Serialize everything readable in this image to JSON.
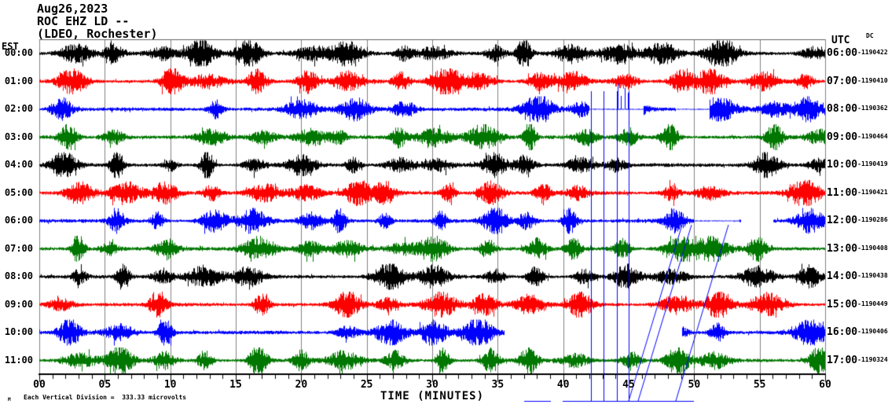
{
  "header": {
    "date": "Aug26,2023",
    "station_line": "ROC EHZ LD --",
    "network_line": "(LDEO, Rochester)"
  },
  "left_axis": {
    "label": "EST"
  },
  "right_axis": {
    "label": "UTC",
    "dc_label": "DC"
  },
  "x_axis": {
    "title": "TIME (MINUTES)",
    "tick_labels": [
      "00",
      "05",
      "10",
      "15",
      "20",
      "25",
      "30",
      "35",
      "40",
      "45",
      "50",
      "55",
      "60"
    ],
    "major_tick_minutes": 5,
    "minor_tick_minutes": 1
  },
  "footer": {
    "marker": "M",
    "text": "Each Vertical Division =",
    "value": "333.33 microvolts"
  },
  "colors": {
    "trace_black": "#000000",
    "trace_red": "#ff0000",
    "trace_blue": "#0000ff",
    "trace_green": "#007700",
    "grid": "#808080",
    "axis": "#000000",
    "background": "#ffffff"
  },
  "chart_data": {
    "type": "line",
    "subtype": "helicorder-seismogram",
    "title": "ROC EHZ LD -- (LDEO, Rochester) Aug26,2023",
    "xlabel": "TIME (MINUTES)",
    "x_range_minutes": [
      0,
      60
    ],
    "grid": "vertical gray lines every 5 minutes",
    "vertical_division_microvolts": 333.33,
    "row_count": 12,
    "rows": [
      {
        "est": "00:00",
        "utc": "06:00",
        "dc": "-1190422",
        "color": "#000000"
      },
      {
        "est": "01:00",
        "utc": "07:00",
        "dc": "-1190410",
        "color": "#ff0000"
      },
      {
        "est": "02:00",
        "utc": "08:00",
        "dc": "-1190362",
        "color": "#0000ff"
      },
      {
        "est": "03:00",
        "utc": "09:00",
        "dc": "-1190464",
        "color": "#007700"
      },
      {
        "est": "04:00",
        "utc": "10:00",
        "dc": "-1190419",
        "color": "#000000"
      },
      {
        "est": "05:00",
        "utc": "11:00",
        "dc": "-1190421",
        "color": "#ff0000"
      },
      {
        "est": "06:00",
        "utc": "12:00",
        "dc": "-1190286",
        "color": "#0000ff"
      },
      {
        "est": "07:00",
        "utc": "13:00",
        "dc": "-1190408",
        "color": "#007700"
      },
      {
        "est": "08:00",
        "utc": "14:00",
        "dc": "-1190438",
        "color": "#000000"
      },
      {
        "est": "09:00",
        "utc": "15:00",
        "dc": "-1190449",
        "color": "#ff0000"
      },
      {
        "est": "10:00",
        "utc": "16:00",
        "dc": "-1190406",
        "color": "#0000ff"
      },
      {
        "est": "11:00",
        "utc": "17:00",
        "dc": "-1190324",
        "color": "#007700"
      }
    ],
    "notes": [
      "Continuous seismic noise traces with recurring bursts roughly every 3.5-4 minutes in every row",
      "Row 10:00 EST (16:00 UTC, blue) has a telemetry gap from about minute 35.5 to minute 49",
      "Row 02:00 EST (08:00 UTC, blue) has off-scale spikes near minutes 42-45 drawn as long vertical blue lines down past the x-axis",
      "Off-scale blue trace segments drawn as horizontal blue lines below the x-axis near minutes 37-50 and diagonal blue lines rising to the 06:00 EST row near minute 49"
    ]
  }
}
